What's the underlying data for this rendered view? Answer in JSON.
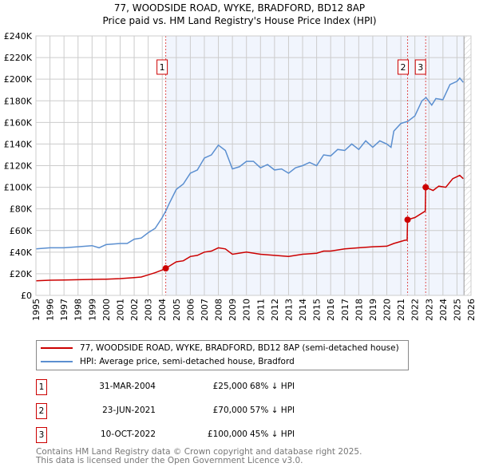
{
  "title": "77, WOODSIDE ROAD, WYKE, BRADFORD, BD12 8AP",
  "subtitle": "Price paid vs. HM Land Registry's House Price Index (HPI)",
  "chart_data": {
    "type": "line",
    "xlim": [
      1995,
      2026
    ],
    "ylim": [
      0,
      240000
    ],
    "yticks": [
      0,
      20000,
      40000,
      60000,
      80000,
      100000,
      120000,
      140000,
      160000,
      180000,
      200000,
      220000,
      240000
    ],
    "ytick_labels": [
      "£0",
      "£20K",
      "£40K",
      "£60K",
      "£80K",
      "£100K",
      "£120K",
      "£140K",
      "£160K",
      "£180K",
      "£200K",
      "£220K",
      "£240K"
    ],
    "xticks": [
      1995,
      1996,
      1997,
      1998,
      1999,
      2000,
      2001,
      2002,
      2003,
      2004,
      2005,
      2006,
      2007,
      2008,
      2009,
      2010,
      2011,
      2012,
      2013,
      2014,
      2015,
      2016,
      2017,
      2018,
      2019,
      2020,
      2021,
      2022,
      2023,
      2024,
      2025,
      2026
    ],
    "grid": true,
    "series": [
      {
        "name": "77, WOODSIDE ROAD, WYKE, BRADFORD, BD12 8AP (semi-detached house)",
        "color": "#cc0000",
        "x": [
          1995,
          1996,
          1997,
          1998,
          1999,
          2000,
          2001,
          2002,
          2002.5,
          2003,
          2003.5,
          2004,
          2004.25,
          2005,
          2005.5,
          2006,
          2006.5,
          2007,
          2007.5,
          2008,
          2008.5,
          2009,
          2010,
          2011,
          2012,
          2013,
          2014,
          2015,
          2015.5,
          2016,
          2017,
          2018,
          2019,
          2020,
          2020.5,
          2021.3,
          2021.45,
          2021.48,
          2022,
          2022.74,
          2022.77,
          2023.3,
          2023.7,
          2024.2,
          2024.7,
          2025.2,
          2025.45
        ],
        "y": [
          13500,
          14000,
          14200,
          14500,
          14800,
          15000,
          15500,
          16500,
          17000,
          19000,
          21000,
          23500,
          25000,
          31000,
          32000,
          36000,
          37000,
          40000,
          41000,
          44000,
          43000,
          38000,
          40000,
          38000,
          37000,
          36000,
          38000,
          39000,
          41000,
          41000,
          43000,
          44000,
          45000,
          45500,
          48000,
          51000,
          51000,
          70000,
          72000,
          78000,
          100000,
          97000,
          101000,
          100000,
          108000,
          111000,
          108000
        ]
      },
      {
        "name": "HPI: Average price, semi-detached house, Bradford",
        "color": "#5b8fd0",
        "x": [
          1995,
          1996,
          1997,
          1998,
          1999,
          1999.5,
          2000,
          2001,
          2001.5,
          2002,
          2002.5,
          2003,
          2003.5,
          2004,
          2004.25,
          2004.5,
          2005,
          2005.5,
          2006,
          2006.5,
          2007,
          2007.5,
          2008,
          2008.5,
          2009,
          2009.5,
          2010,
          2010.5,
          2011,
          2011.5,
          2012,
          2012.5,
          2013,
          2013.5,
          2014,
          2014.5,
          2015,
          2015.5,
          2016,
          2016.5,
          2017,
          2017.5,
          2018,
          2018.5,
          2019,
          2019.5,
          2020,
          2020.3,
          2020.5,
          2021,
          2021.5,
          2022,
          2022.5,
          2022.8,
          2023.2,
          2023.5,
          2024,
          2024.5,
          2025,
          2025.2,
          2025.45
        ],
        "y": [
          43000,
          44000,
          44000,
          45000,
          46000,
          44000,
          47000,
          48000,
          48000,
          52000,
          53000,
          58000,
          62000,
          72000,
          78000,
          85000,
          98000,
          103000,
          113000,
          116000,
          127000,
          130000,
          139000,
          134000,
          117000,
          119000,
          124000,
          124000,
          118000,
          121000,
          116000,
          117000,
          113000,
          118000,
          120000,
          123000,
          120000,
          130000,
          129000,
          135000,
          134000,
          140000,
          135000,
          143000,
          137000,
          143000,
          140000,
          137000,
          152000,
          159000,
          161000,
          166000,
          180000,
          183000,
          176000,
          182000,
          181000,
          195000,
          198000,
          201000,
          197000
        ]
      }
    ],
    "transactions": [
      {
        "label": "1",
        "x": 2004.25,
        "y": 25000
      },
      {
        "label": "2",
        "x": 2021.48,
        "y": 70000
      },
      {
        "label": "3",
        "x": 2022.77,
        "y": 100000
      }
    ]
  },
  "legend": {
    "property": "77, WOODSIDE ROAD, WYKE, BRADFORD, BD12 8AP (semi-detached house)",
    "hpi": "HPI: Average price, semi-detached house, Bradford"
  },
  "table": [
    {
      "num": "1",
      "date": "31-MAR-2004",
      "price": "£25,000",
      "hpi": "68% ↓ HPI"
    },
    {
      "num": "2",
      "date": "23-JUN-2021",
      "price": "£70,000",
      "hpi": "57% ↓ HPI"
    },
    {
      "num": "3",
      "date": "10-OCT-2022",
      "price": "£100,000",
      "hpi": "45% ↓ HPI"
    }
  ],
  "footer": {
    "line1": "Contains HM Land Registry data © Crown copyright and database right 2025.",
    "line2": "This data is licensed under the Open Government Licence v3.0."
  }
}
